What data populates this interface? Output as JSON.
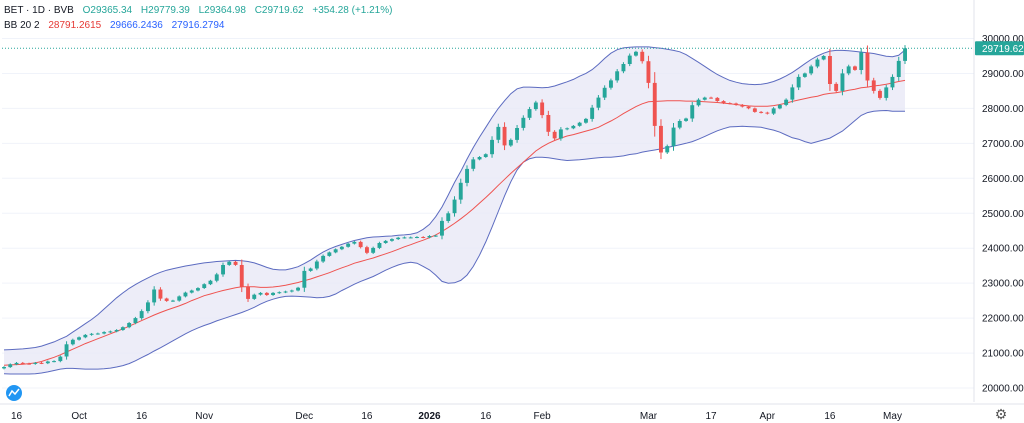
{
  "legend": {
    "symbol": "BET · 1D · BVB",
    "open": "O29365.34",
    "high": "H29779.39",
    "low": "L29364.98",
    "close": "C29719.62",
    "change": "+354.28 (+1.21%)",
    "indicator": "BB 20 2",
    "basis": "28791.2615",
    "upper": "29666.2436",
    "lower": "27916.2794"
  },
  "price_label": "29719.62",
  "colors": {
    "up": "#26a69a",
    "down": "#ef5350",
    "band": "#5c6bc0",
    "basis": "#ef5350",
    "fill": "#e8e8f6",
    "price_tag": "#26a69a"
  },
  "chart_data": {
    "type": "candlestick",
    "indicator": "Bollinger Bands (20, 2)",
    "ylim": [
      19600,
      30300
    ],
    "y_ticks": [
      20000,
      21000,
      22000,
      23000,
      24000,
      25000,
      26000,
      27000,
      28000,
      29000,
      30000
    ],
    "y_tick_labels": [
      "20000.00",
      "21000.00",
      "22000.00",
      "23000.00",
      "24000.00",
      "25000.00",
      "26000.00",
      "27000.00",
      "28000.00",
      "29000.00",
      "30000.00"
    ],
    "x_ticks": [
      {
        "label": "16",
        "i": 2
      },
      {
        "label": "Oct",
        "i": 12
      },
      {
        "label": "16",
        "i": 22
      },
      {
        "label": "Nov",
        "i": 32
      },
      {
        "label": "Dec",
        "i": 48
      },
      {
        "label": "16",
        "i": 58
      },
      {
        "label": "2026",
        "i": 68
      },
      {
        "label": "16",
        "i": 77
      },
      {
        "label": "Feb",
        "i": 86
      },
      {
        "label": "Mar",
        "i": 103
      },
      {
        "label": "17",
        "i": 113
      },
      {
        "label": "Apr",
        "i": 122
      },
      {
        "label": "16",
        "i": 132
      },
      {
        "label": "May",
        "i": 142
      }
    ],
    "close": [
      20600,
      20680,
      20720,
      20700,
      20690,
      20720,
      20710,
      20760,
      20770,
      20900,
      21250,
      21380,
      21450,
      21520,
      21550,
      21560,
      21600,
      21620,
      21660,
      21740,
      21860,
      22000,
      22200,
      22450,
      22820,
      22560,
      22490,
      22500,
      22620,
      22730,
      22790,
      22860,
      22970,
      23070,
      23250,
      23520,
      23610,
      23520,
      22900,
      22550,
      22670,
      22720,
      22660,
      22720,
      22740,
      22760,
      22790,
      22870,
      23350,
      23420,
      23620,
      23780,
      23880,
      23970,
      24040,
      24130,
      24180,
      24030,
      23870,
      24010,
      24150,
      24210,
      24260,
      24300,
      24310,
      24310,
      24320,
      24310,
      24350,
      24360,
      24780,
      25000,
      25390,
      25870,
      26270,
      26540,
      26610,
      26690,
      27100,
      27470,
      26940,
      27100,
      27440,
      27730,
      27980,
      28170,
      27810,
      27330,
      27140,
      27400,
      27430,
      27500,
      27590,
      27700,
      28020,
      28310,
      28590,
      28800,
      29060,
      29270,
      29510,
      29620,
      29350,
      28730,
      27500,
      26740,
      26920,
      27450,
      27640,
      27710,
      28090,
      28250,
      28310,
      28300,
      28210,
      28150,
      28140,
      28100,
      28050,
      28000,
      27900,
      27880,
      27850,
      28000,
      28100,
      28250,
      28600,
      28900,
      29000,
      29200,
      29400,
      29500,
      28700,
      28500,
      29000,
      29200,
      29100,
      29600,
      28800,
      28500,
      28300,
      28600,
      28900,
      29360,
      29720
    ],
    "basis": [
      20650,
      20660,
      20670,
      20680,
      20700,
      20720,
      20760,
      20820,
      20880,
      20950,
      21030,
      21110,
      21190,
      21270,
      21340,
      21410,
      21480,
      21550,
      21620,
      21690,
      21770,
      21850,
      21930,
      22010,
      22090,
      22160,
      22230,
      22290,
      22350,
      22420,
      22500,
      22570,
      22640,
      22690,
      22740,
      22790,
      22830,
      22870,
      22900,
      22900,
      22900,
      22880,
      22880,
      22890,
      22910,
      22940,
      22980,
      23020,
      23070,
      23120,
      23180,
      23240,
      23300,
      23370,
      23440,
      23500,
      23570,
      23620,
      23670,
      23720,
      23780,
      23840,
      23900,
      23970,
      24040,
      24100,
      24170,
      24230,
      24300,
      24380,
      24480,
      24590,
      24710,
      24840,
      24980,
      25130,
      25290,
      25450,
      25620,
      25800,
      25970,
      26140,
      26300,
      26460,
      26620,
      26780,
      26900,
      27000,
      27080,
      27150,
      27210,
      27250,
      27300,
      27350,
      27400,
      27460,
      27550,
      27640,
      27740,
      27850,
      27950,
      28050,
      28130,
      28190,
      28200,
      28210,
      28220,
      28220,
      28220,
      28210,
      28210,
      28200,
      28190,
      28180,
      28170,
      28150,
      28130,
      28110,
      28090,
      28070,
      28060,
      28060,
      28060,
      28080,
      28110,
      28150,
      28200,
      28240,
      28280,
      28320,
      28350,
      28400,
      28430,
      28450,
      28480,
      28520,
      28550,
      28590,
      28610,
      28640,
      28660,
      28690,
      28730,
      28770,
      28800
    ],
    "upper": [
      21090,
      21100,
      21110,
      21120,
      21140,
      21160,
      21200,
      21260,
      21320,
      21400,
      21480,
      21600,
      21720,
      21840,
      21960,
      22100,
      22260,
      22420,
      22580,
      22720,
      22850,
      22960,
      23060,
      23150,
      23240,
      23310,
      23370,
      23410,
      23450,
      23490,
      23520,
      23550,
      23580,
      23600,
      23620,
      23630,
      23640,
      23650,
      23640,
      23620,
      23580,
      23520,
      23450,
      23400,
      23380,
      23380,
      23420,
      23470,
      23560,
      23660,
      23780,
      23890,
      23980,
      24050,
      24110,
      24170,
      24220,
      24260,
      24300,
      24320,
      24330,
      24340,
      24350,
      24370,
      24380,
      24400,
      24440,
      24540,
      24680,
      24900,
      25180,
      25520,
      25880,
      26200,
      26550,
      26880,
      27180,
      27460,
      27740,
      28000,
      28220,
      28420,
      28560,
      28610,
      28610,
      28600,
      28590,
      28600,
      28640,
      28700,
      28760,
      28830,
      28920,
      29000,
      29110,
      29260,
      29430,
      29580,
      29680,
      29730,
      29750,
      29760,
      29760,
      29760,
      29740,
      29720,
      29690,
      29660,
      29620,
      29540,
      29430,
      29320,
      29200,
      29080,
      28970,
      28880,
      28800,
      28750,
      28710,
      28690,
      28680,
      28690,
      28720,
      28770,
      28840,
      28930,
      29030,
      29150,
      29280,
      29400,
      29500,
      29580,
      29640,
      29660,
      29660,
      29650,
      29630,
      29610,
      29590,
      29570,
      29530,
      29490,
      29480,
      29520,
      29670
    ],
    "lower": [
      20410,
      20400,
      20400,
      20400,
      20400,
      20410,
      20430,
      20460,
      20500,
      20540,
      20560,
      20560,
      20550,
      20540,
      20540,
      20540,
      20550,
      20570,
      20600,
      20640,
      20700,
      20780,
      20870,
      20960,
      21060,
      21150,
      21250,
      21350,
      21450,
      21550,
      21640,
      21720,
      21790,
      21850,
      21920,
      21980,
      22040,
      22100,
      22160,
      22230,
      22310,
      22400,
      22480,
      22540,
      22590,
      22620,
      22630,
      22620,
      22610,
      22600,
      22580,
      22590,
      22620,
      22690,
      22790,
      22880,
      22970,
      23050,
      23120,
      23190,
      23280,
      23370,
      23450,
      23520,
      23570,
      23600,
      23570,
      23480,
      23380,
      23230,
      23050,
      23000,
      23010,
      23080,
      23230,
      23480,
      23800,
      24180,
      24600,
      25050,
      25500,
      25900,
      26240,
      26460,
      26560,
      26600,
      26600,
      26590,
      26560,
      26530,
      26510,
      26520,
      26530,
      26550,
      26570,
      26590,
      26600,
      26600,
      26620,
      26640,
      26680,
      26700,
      26750,
      26780,
      26810,
      26840,
      26880,
      26920,
      26960,
      27000,
      27050,
      27120,
      27200,
      27280,
      27360,
      27420,
      27470,
      27480,
      27490,
      27480,
      27470,
      27460,
      27420,
      27380,
      27320,
      27240,
      27160,
      27120,
      27050,
      27000,
      27050,
      27100,
      27150,
      27250,
      27350,
      27500,
      27650,
      27800,
      27880,
      27920,
      27930,
      27940,
      27920,
      27920,
      27920
    ]
  }
}
